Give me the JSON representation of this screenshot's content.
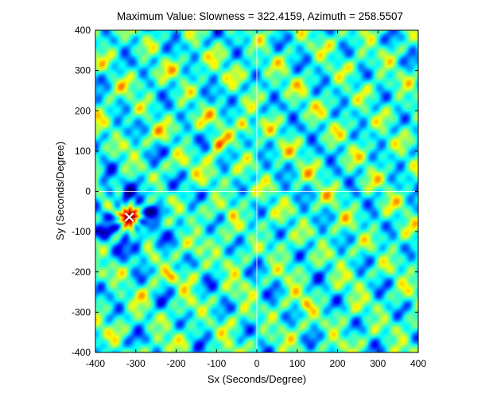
{
  "chart_data": {
    "type": "heatmap",
    "title": "Maximum Value: Slowness = 322.4159, Azimuth = 258.5507",
    "xlabel": "Sx (Seconds/Degree)",
    "ylabel": "Sy (Seconds/Degree)",
    "xlim": [
      -400,
      400
    ],
    "ylim": [
      -400,
      400
    ],
    "xticks": [
      "-400",
      "-300",
      "-200",
      "-100",
      "0",
      "100",
      "200",
      "300",
      "400"
    ],
    "yticks": [
      "-400",
      "-300",
      "-200",
      "-100",
      "0",
      "100",
      "200",
      "300",
      "400"
    ],
    "colormap": "jet",
    "crosshair": {
      "sx": 0,
      "sy": 0,
      "color": "#ffffff"
    },
    "maximum": {
      "sx": -316,
      "sy": -64,
      "marker": "x",
      "color": "#ffffff"
    },
    "hot_spots": [
      {
        "sx": -316,
        "sy": -60,
        "strength": 1.0
      },
      {
        "sx": -30,
        "sy": 165,
        "strength": 0.45
      },
      {
        "sx": -95,
        "sy": 120,
        "strength": 0.4
      },
      {
        "sx": -110,
        "sy": 85,
        "strength": 0.35
      },
      {
        "sx": -215,
        "sy": -210,
        "strength": 0.4
      },
      {
        "sx": -140,
        "sy": -145,
        "strength": 0.3
      },
      {
        "sx": 125,
        "sy": -285,
        "strength": 0.3
      },
      {
        "sx": -60,
        "sy": -55,
        "strength": 0.3
      }
    ]
  }
}
